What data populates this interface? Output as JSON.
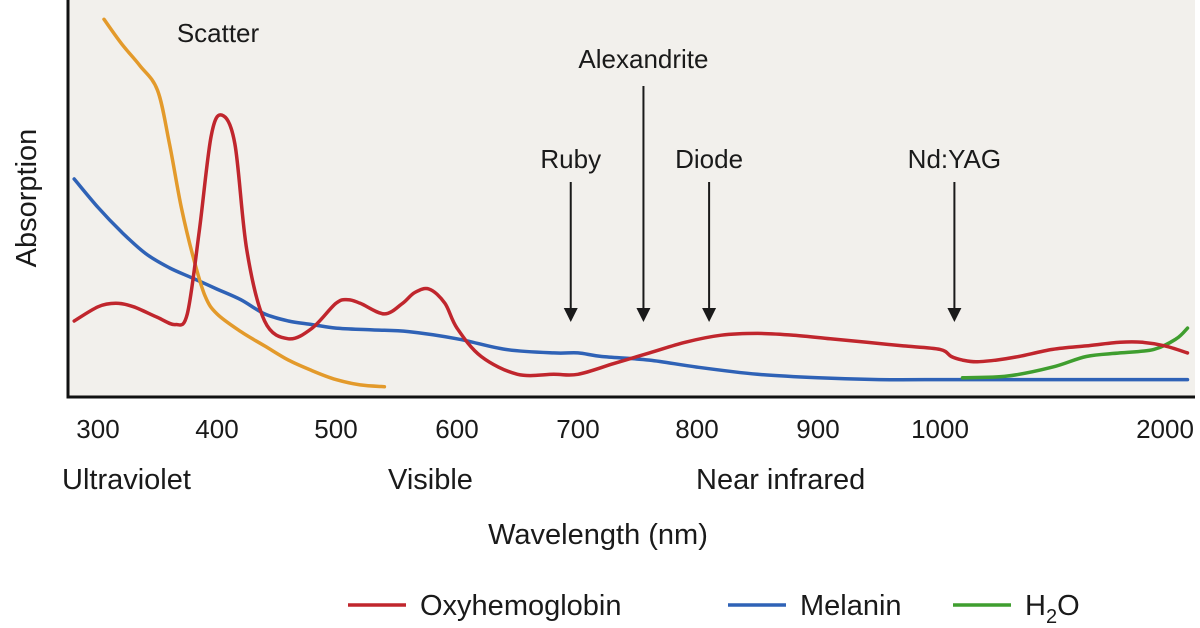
{
  "chart_data": {
    "type": "line",
    "title": "",
    "xlabel": "Wavelength (nm)",
    "ylabel": "Absorption",
    "x_ticks": [
      "300",
      "400",
      "500",
      "600",
      "700",
      "800",
      "900",
      "1000",
      "2000"
    ],
    "regions": [
      "Ultraviolet",
      "Visible",
      "Near infrared"
    ],
    "annotations": [
      {
        "label": "Scatter",
        "x": 350
      },
      {
        "label": "Ruby",
        "x": 694
      },
      {
        "label": "Alexandrite",
        "x": 755
      },
      {
        "label": "Diode",
        "x": 810
      },
      {
        "label": "Nd:YAG",
        "x": 1064
      }
    ],
    "legend_position": "bottom",
    "legend": [
      {
        "name": "Oxyhemoglobin",
        "color": "#c0262d"
      },
      {
        "name": "Melanin",
        "color": "#2f62b6"
      },
      {
        "name": "H",
        "subscript": "2",
        "suffix": "O",
        "color": "#3f9e2f"
      }
    ],
    "scatter_color": "#e39a2b",
    "ylim": [
      0,
      1
    ],
    "series": [
      {
        "key": "oxyhemoglobin",
        "color": "#c0262d",
        "x": [
          280,
          300,
          315,
          330,
          350,
          365,
          375,
          385,
          395,
          404,
          415,
          425,
          440,
          460,
          480,
          500,
          510,
          520,
          540,
          555,
          565,
          577,
          590,
          600,
          620,
          650,
          680,
          700,
          730,
          760,
          790,
          820,
          850,
          880,
          910,
          940,
          970,
          1000,
          1050,
          1100,
          1160,
          1250,
          1350,
          1500,
          1650,
          1800,
          1900,
          2000,
          2100
        ],
        "y": [
          0.2,
          0.24,
          0.25,
          0.24,
          0.21,
          0.19,
          0.22,
          0.45,
          0.72,
          0.78,
          0.7,
          0.4,
          0.2,
          0.15,
          0.18,
          0.25,
          0.26,
          0.25,
          0.22,
          0.25,
          0.28,
          0.29,
          0.25,
          0.18,
          0.1,
          0.05,
          0.05,
          0.05,
          0.08,
          0.11,
          0.14,
          0.16,
          0.165,
          0.16,
          0.15,
          0.14,
          0.13,
          0.12,
          0.1,
          0.09,
          0.085,
          0.09,
          0.1,
          0.12,
          0.13,
          0.14,
          0.14,
          0.13,
          0.11
        ]
      },
      {
        "key": "melanin",
        "color": "#2f62b6",
        "x": [
          280,
          300,
          320,
          340,
          360,
          380,
          400,
          420,
          440,
          460,
          480,
          500,
          530,
          560,
          600,
          640,
          680,
          700,
          720,
          760,
          800,
          850,
          900,
          950,
          1000,
          1100,
          1300,
          1600,
          2000,
          2100
        ],
        "y": [
          0.6,
          0.52,
          0.45,
          0.39,
          0.35,
          0.32,
          0.29,
          0.26,
          0.22,
          0.2,
          0.19,
          0.18,
          0.175,
          0.17,
          0.15,
          0.12,
          0.11,
          0.11,
          0.1,
          0.09,
          0.07,
          0.05,
          0.04,
          0.035,
          0.035,
          0.035,
          0.035,
          0.035,
          0.035,
          0.035
        ]
      },
      {
        "key": "h2o",
        "color": "#3f9e2f",
        "x": [
          1100,
          1300,
          1500,
          1650,
          1800,
          1950,
          2050,
          2100
        ],
        "y": [
          0.04,
          0.045,
          0.07,
          0.1,
          0.11,
          0.12,
          0.15,
          0.18
        ]
      },
      {
        "key": "scatter",
        "color": "#e39a2b",
        "x": [
          305,
          320,
          335,
          350,
          360,
          370,
          380,
          390,
          400,
          420,
          440,
          460,
          480,
          500,
          520,
          540
        ],
        "y": [
          1.05,
          0.98,
          0.92,
          0.85,
          0.7,
          0.52,
          0.38,
          0.27,
          0.22,
          0.17,
          0.13,
          0.09,
          0.06,
          0.035,
          0.02,
          0.015
        ]
      }
    ]
  }
}
